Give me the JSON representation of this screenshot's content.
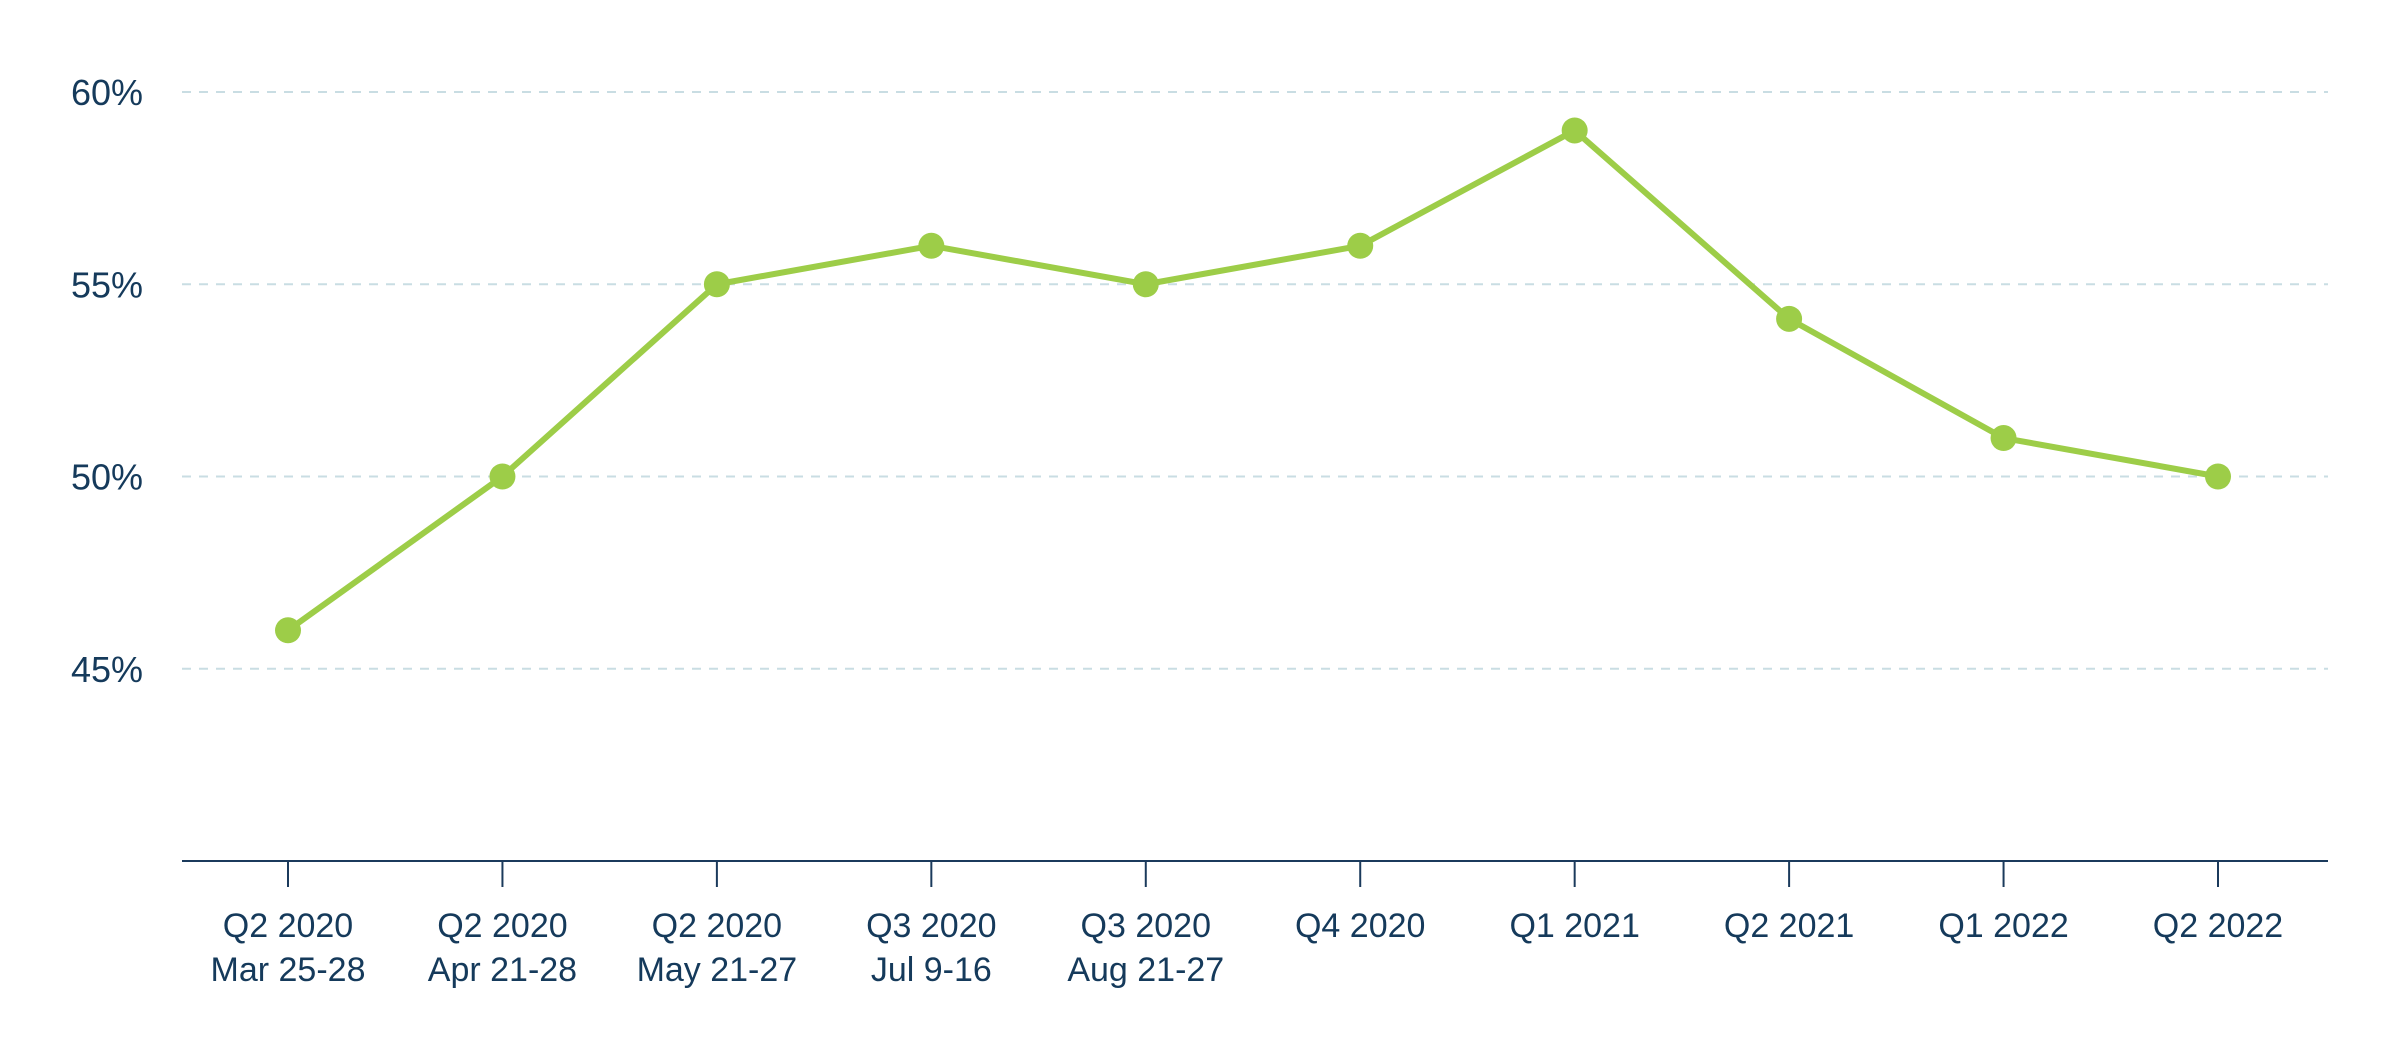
{
  "chart_data": {
    "type": "line",
    "title": "",
    "xlabel": "",
    "ylabel": "",
    "categories": [
      [
        "Q2 2020",
        "Mar 25-28"
      ],
      [
        "Q2 2020",
        "Apr 21-28"
      ],
      [
        "Q2 2020",
        "May 21-27"
      ],
      [
        "Q3 2020",
        "Jul 9-16"
      ],
      [
        "Q3 2020",
        "Aug 21-27"
      ],
      [
        "Q4 2020"
      ],
      [
        "Q1 2021"
      ],
      [
        "Q2 2021"
      ],
      [
        "Q1 2022"
      ],
      [
        "Q2 2022"
      ]
    ],
    "series": [
      {
        "values": [
          46,
          50,
          55,
          56,
          55,
          56,
          59,
          54.1,
          51,
          50
        ],
        "color": "#9dcd48"
      }
    ],
    "yticks": [
      45,
      50,
      55,
      60
    ],
    "ytick_labels": [
      "45%",
      "50%",
      "55%",
      "60%"
    ],
    "ylim": [
      40,
      60
    ],
    "grid": true,
    "legend": "none",
    "colors": {
      "line": "#9dcd48",
      "axis": "#1b3a5c",
      "text": "#153a5b",
      "grid": "#c9dde3"
    }
  }
}
